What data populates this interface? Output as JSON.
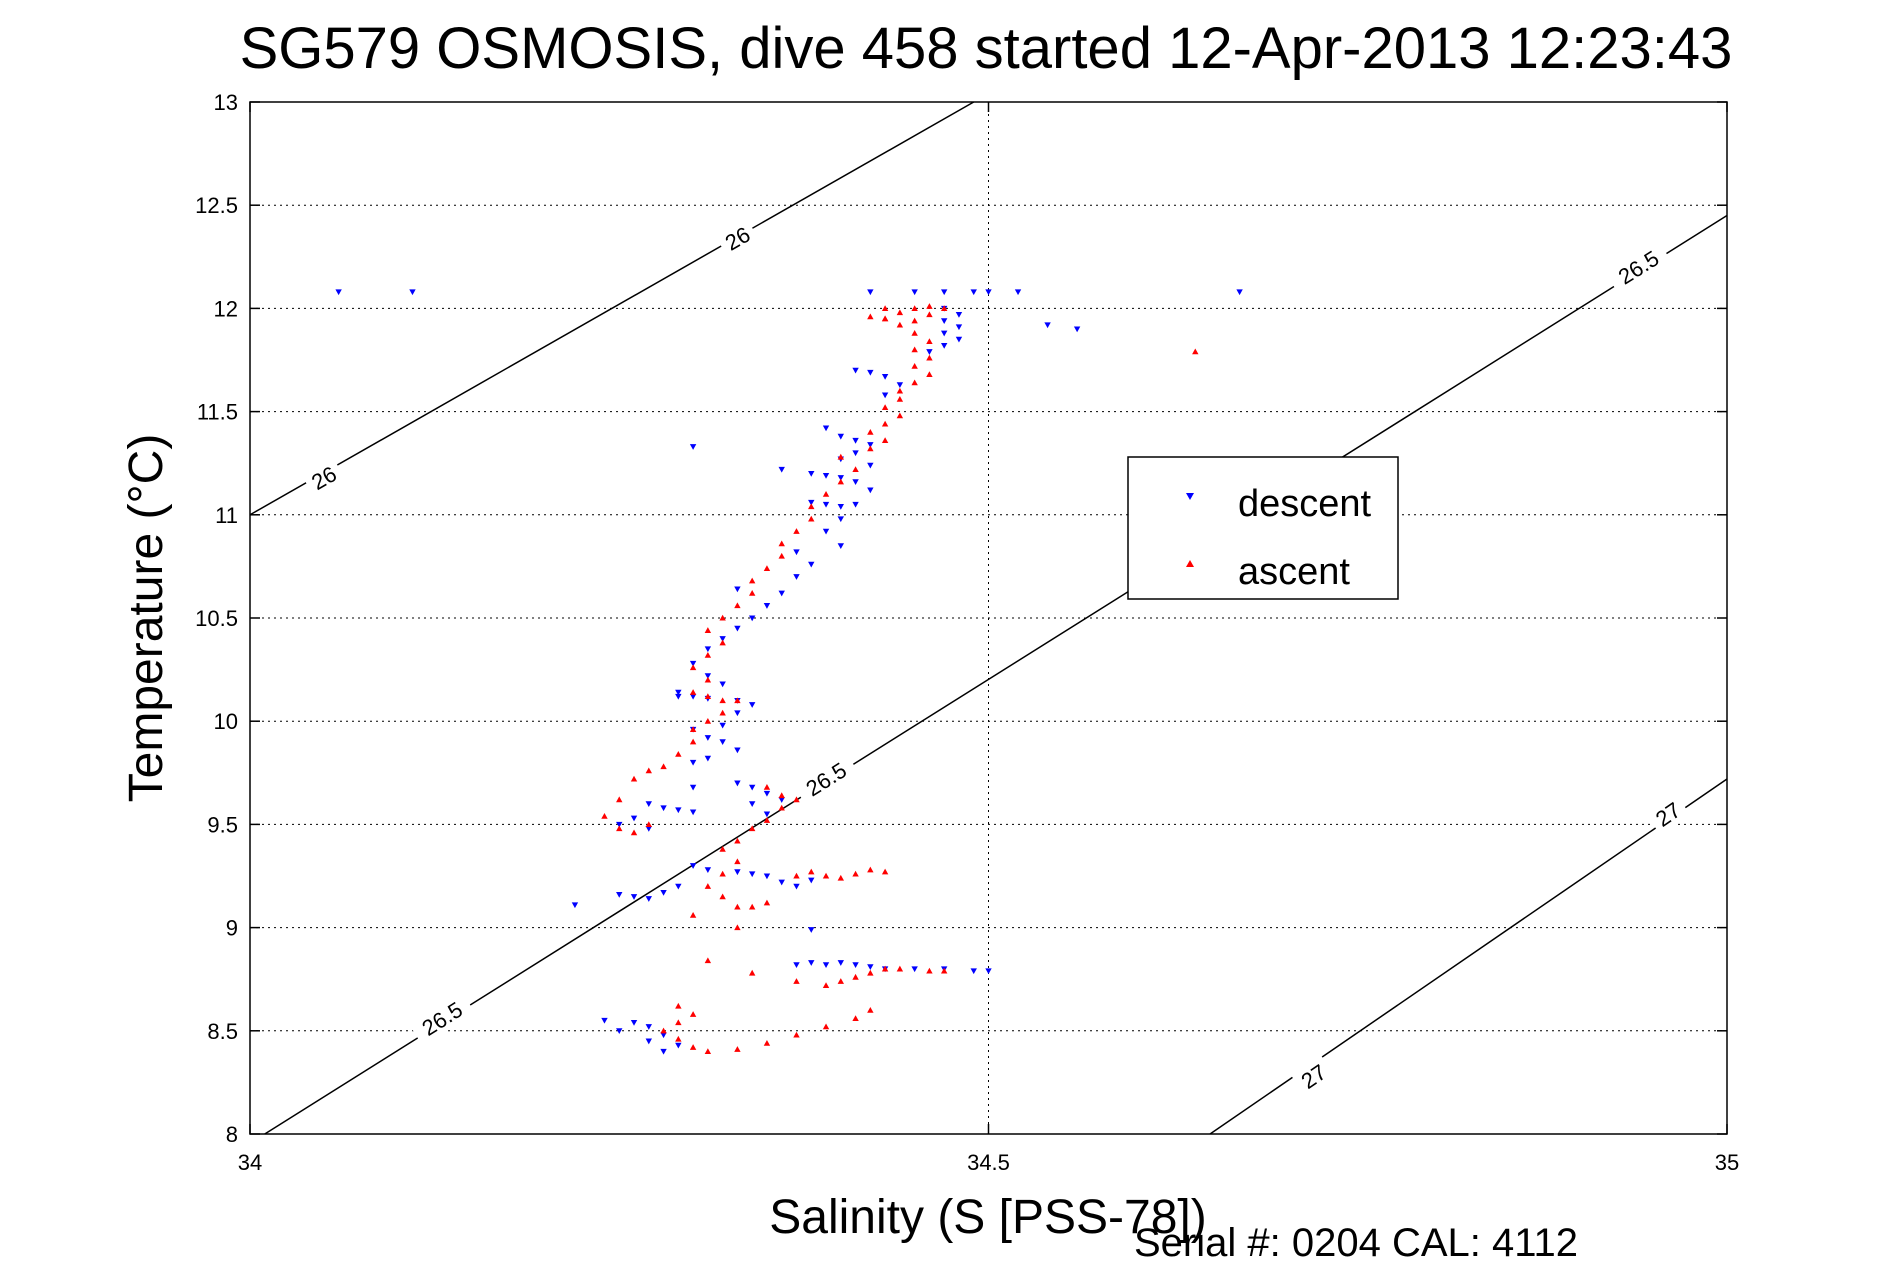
{
  "chart_data": {
    "type": "scatter",
    "title": "SG579 OSMOSIS, dive 458 started 12-Apr-2013 12:23:43",
    "xlabel": "Salinity (S [PSS-78])",
    "ylabel": "Temperature (°C)",
    "footer": "Serial #: 0204  CAL: 4112",
    "xlim": [
      34,
      35
    ],
    "ylim": [
      8,
      13
    ],
    "xticks": [
      34,
      34.5,
      35
    ],
    "yticks": [
      8,
      8.5,
      9,
      9.5,
      10,
      10.5,
      11,
      11.5,
      12,
      12.5,
      13
    ],
    "xtick_labels": [
      "34",
      "34.5",
      "35"
    ],
    "ytick_labels": [
      "8",
      "8.5",
      "9",
      "9.5",
      "10",
      "10.5",
      "11",
      "11.5",
      "12",
      "12.5",
      "13"
    ],
    "grid": true,
    "legend_placement": "center-right",
    "colors": {
      "descent": "#0000ff",
      "ascent": "#ff0000",
      "contour": "#000000"
    },
    "density_contours": [
      {
        "label": "26",
        "points": [
          [
            34,
            11.0
          ],
          [
            34.49,
            13.0
          ]
        ],
        "label_positions": [
          [
            34.05,
            11.18
          ],
          [
            34.33,
            12.34
          ]
        ]
      },
      {
        "label": "26.5",
        "points": [
          [
            34.01,
            8.0
          ],
          [
            35,
            12.45
          ]
        ],
        "label_positions": [
          [
            34.13,
            8.56
          ],
          [
            34.39,
            9.72
          ],
          [
            34.94,
            12.2
          ]
        ]
      },
      {
        "label": "27",
        "points": [
          [
            34.65,
            8.0
          ],
          [
            35,
            9.72
          ]
        ],
        "label_positions": [
          [
            34.72,
            8.28
          ],
          [
            34.96,
            9.55
          ]
        ]
      }
    ],
    "series": [
      {
        "name": "descent",
        "marker": "triangle-down",
        "points": [
          [
            34.06,
            12.08
          ],
          [
            34.11,
            12.08
          ],
          [
            34.42,
            12.08
          ],
          [
            34.45,
            12.08
          ],
          [
            34.47,
            12.08
          ],
          [
            34.49,
            12.08
          ],
          [
            34.5,
            12.08
          ],
          [
            34.52,
            12.08
          ],
          [
            34.67,
            12.08
          ],
          [
            34.47,
            12.0
          ],
          [
            34.48,
            11.97
          ],
          [
            34.47,
            11.94
          ],
          [
            34.48,
            11.91
          ],
          [
            34.47,
            11.88
          ],
          [
            34.48,
            11.85
          ],
          [
            34.47,
            11.82
          ],
          [
            34.46,
            11.79
          ],
          [
            34.54,
            11.92
          ],
          [
            34.56,
            11.9
          ],
          [
            34.41,
            11.7
          ],
          [
            34.42,
            11.69
          ],
          [
            34.43,
            11.67
          ],
          [
            34.44,
            11.63
          ],
          [
            34.43,
            11.58
          ],
          [
            34.39,
            11.42
          ],
          [
            34.4,
            11.38
          ],
          [
            34.41,
            11.36
          ],
          [
            34.42,
            11.34
          ],
          [
            34.41,
            11.3
          ],
          [
            34.4,
            11.27
          ],
          [
            34.42,
            11.24
          ],
          [
            34.3,
            11.33
          ],
          [
            34.36,
            11.22
          ],
          [
            34.38,
            11.2
          ],
          [
            34.39,
            11.19
          ],
          [
            34.4,
            11.18
          ],
          [
            34.41,
            11.16
          ],
          [
            34.42,
            11.12
          ],
          [
            34.38,
            11.06
          ],
          [
            34.39,
            11.05
          ],
          [
            34.4,
            11.04
          ],
          [
            34.41,
            11.05
          ],
          [
            34.4,
            10.98
          ],
          [
            34.39,
            10.92
          ],
          [
            34.4,
            10.85
          ],
          [
            34.37,
            10.82
          ],
          [
            34.38,
            10.76
          ],
          [
            34.37,
            10.7
          ],
          [
            34.36,
            10.62
          ],
          [
            34.35,
            10.56
          ],
          [
            34.33,
            10.64
          ],
          [
            34.34,
            10.5
          ],
          [
            34.33,
            10.45
          ],
          [
            34.32,
            10.4
          ],
          [
            34.31,
            10.35
          ],
          [
            34.3,
            10.28
          ],
          [
            34.31,
            10.22
          ],
          [
            34.32,
            10.18
          ],
          [
            34.29,
            10.14
          ],
          [
            34.3,
            10.12
          ],
          [
            34.31,
            10.11
          ],
          [
            34.33,
            10.1
          ],
          [
            34.34,
            10.08
          ],
          [
            34.33,
            10.04
          ],
          [
            34.32,
            9.98
          ],
          [
            34.29,
            10.12
          ],
          [
            34.3,
            9.96
          ],
          [
            34.31,
            9.92
          ],
          [
            34.32,
            9.9
          ],
          [
            34.33,
            9.86
          ],
          [
            34.31,
            9.82
          ],
          [
            34.3,
            9.8
          ],
          [
            34.3,
            9.68
          ],
          [
            34.33,
            9.7
          ],
          [
            34.34,
            9.68
          ],
          [
            34.35,
            9.65
          ],
          [
            34.36,
            9.62
          ],
          [
            34.34,
            9.6
          ],
          [
            34.35,
            9.55
          ],
          [
            34.27,
            9.6
          ],
          [
            34.28,
            9.58
          ],
          [
            34.29,
            9.57
          ],
          [
            34.3,
            9.56
          ],
          [
            34.26,
            9.53
          ],
          [
            34.25,
            9.5
          ],
          [
            34.27,
            9.48
          ],
          [
            34.25,
            9.16
          ],
          [
            34.26,
            9.15
          ],
          [
            34.27,
            9.14
          ],
          [
            34.28,
            9.17
          ],
          [
            34.29,
            9.2
          ],
          [
            34.3,
            9.3
          ],
          [
            34.31,
            9.28
          ],
          [
            34.33,
            9.27
          ],
          [
            34.34,
            9.26
          ],
          [
            34.35,
            9.25
          ],
          [
            34.36,
            9.22
          ],
          [
            34.37,
            9.2
          ],
          [
            34.38,
            9.23
          ],
          [
            34.22,
            9.11
          ],
          [
            34.38,
            8.99
          ],
          [
            34.37,
            8.82
          ],
          [
            34.38,
            8.83
          ],
          [
            34.39,
            8.82
          ],
          [
            34.4,
            8.83
          ],
          [
            34.41,
            8.82
          ],
          [
            34.42,
            8.81
          ],
          [
            34.43,
            8.8
          ],
          [
            34.45,
            8.8
          ],
          [
            34.47,
            8.8
          ],
          [
            34.49,
            8.79
          ],
          [
            34.5,
            8.79
          ],
          [
            34.24,
            8.55
          ],
          [
            34.26,
            8.54
          ],
          [
            34.27,
            8.52
          ],
          [
            34.25,
            8.5
          ],
          [
            34.28,
            8.48
          ],
          [
            34.27,
            8.45
          ],
          [
            34.29,
            8.43
          ],
          [
            34.28,
            8.4
          ]
        ]
      },
      {
        "name": "ascent",
        "marker": "triangle-up",
        "points": [
          [
            34.42,
            11.96
          ],
          [
            34.43,
            11.95
          ],
          [
            34.44,
            11.98
          ],
          [
            34.45,
            12.0
          ],
          [
            34.46,
            12.01
          ],
          [
            34.47,
            12.0
          ],
          [
            34.46,
            11.97
          ],
          [
            34.45,
            11.94
          ],
          [
            34.44,
            11.92
          ],
          [
            34.45,
            11.88
          ],
          [
            34.46,
            11.84
          ],
          [
            34.45,
            11.8
          ],
          [
            34.46,
            11.76
          ],
          [
            34.45,
            11.72
          ],
          [
            34.46,
            11.68
          ],
          [
            34.45,
            11.64
          ],
          [
            34.44,
            11.6
          ],
          [
            34.44,
            11.56
          ],
          [
            34.43,
            11.52
          ],
          [
            34.44,
            11.48
          ],
          [
            34.43,
            11.44
          ],
          [
            34.42,
            11.4
          ],
          [
            34.43,
            11.36
          ],
          [
            34.42,
            11.32
          ],
          [
            34.4,
            11.28
          ],
          [
            34.41,
            11.22
          ],
          [
            34.4,
            11.16
          ],
          [
            34.39,
            11.1
          ],
          [
            34.38,
            11.04
          ],
          [
            34.38,
            10.98
          ],
          [
            34.37,
            10.92
          ],
          [
            34.36,
            10.86
          ],
          [
            34.36,
            10.8
          ],
          [
            34.35,
            10.74
          ],
          [
            34.34,
            10.68
          ],
          [
            34.34,
            10.62
          ],
          [
            34.33,
            10.56
          ],
          [
            34.32,
            10.5
          ],
          [
            34.31,
            10.44
          ],
          [
            34.32,
            10.38
          ],
          [
            34.31,
            10.32
          ],
          [
            34.3,
            10.26
          ],
          [
            34.31,
            10.2
          ],
          [
            34.3,
            10.14
          ],
          [
            34.31,
            10.12
          ],
          [
            34.32,
            10.1
          ],
          [
            34.33,
            10.1
          ],
          [
            34.32,
            10.04
          ],
          [
            34.31,
            10.0
          ],
          [
            34.3,
            9.96
          ],
          [
            34.3,
            9.9
          ],
          [
            34.29,
            9.84
          ],
          [
            34.28,
            9.78
          ],
          [
            34.27,
            9.76
          ],
          [
            34.26,
            9.72
          ],
          [
            34.25,
            9.62
          ],
          [
            34.24,
            9.54
          ],
          [
            34.25,
            9.48
          ],
          [
            34.26,
            9.46
          ],
          [
            34.27,
            9.5
          ],
          [
            34.35,
            9.68
          ],
          [
            34.36,
            9.64
          ],
          [
            34.37,
            9.62
          ],
          [
            34.36,
            9.58
          ],
          [
            34.35,
            9.52
          ],
          [
            34.34,
            9.48
          ],
          [
            34.33,
            9.42
          ],
          [
            34.32,
            9.38
          ],
          [
            34.33,
            9.32
          ],
          [
            34.32,
            9.26
          ],
          [
            34.31,
            9.2
          ],
          [
            34.32,
            9.15
          ],
          [
            34.33,
            9.1
          ],
          [
            34.34,
            9.1
          ],
          [
            34.35,
            9.12
          ],
          [
            34.37,
            9.25
          ],
          [
            34.38,
            9.27
          ],
          [
            34.39,
            9.25
          ],
          [
            34.4,
            9.24
          ],
          [
            34.41,
            9.26
          ],
          [
            34.42,
            9.28
          ],
          [
            34.43,
            9.27
          ],
          [
            34.3,
            9.06
          ],
          [
            34.33,
            9.0
          ],
          [
            34.31,
            8.84
          ],
          [
            34.34,
            8.78
          ],
          [
            34.37,
            8.74
          ],
          [
            34.39,
            8.72
          ],
          [
            34.4,
            8.74
          ],
          [
            34.41,
            8.76
          ],
          [
            34.42,
            8.78
          ],
          [
            34.43,
            8.8
          ],
          [
            34.44,
            8.8
          ],
          [
            34.46,
            8.79
          ],
          [
            34.47,
            8.79
          ],
          [
            34.29,
            8.62
          ],
          [
            34.3,
            8.58
          ],
          [
            34.29,
            8.54
          ],
          [
            34.28,
            8.5
          ],
          [
            34.29,
            8.46
          ],
          [
            34.3,
            8.42
          ],
          [
            34.31,
            8.4
          ],
          [
            34.33,
            8.41
          ],
          [
            34.35,
            8.44
          ],
          [
            34.37,
            8.48
          ],
          [
            34.39,
            8.52
          ],
          [
            34.41,
            8.56
          ],
          [
            34.42,
            8.6
          ],
          [
            34.43,
            12.0
          ],
          [
            34.43,
            11.95
          ],
          [
            34.64,
            11.79
          ]
        ]
      }
    ]
  }
}
